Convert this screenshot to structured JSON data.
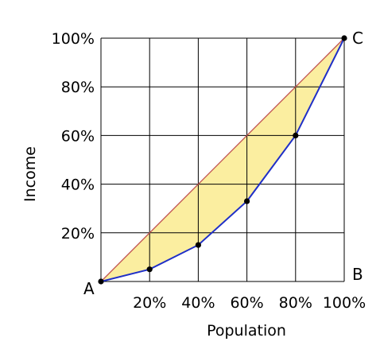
{
  "chart_data": {
    "type": "line",
    "title": "",
    "xlabel": "Population",
    "ylabel": "Income",
    "xlim": [
      0,
      100
    ],
    "ylim": [
      0,
      100
    ],
    "grid": true,
    "x_ticks": [
      20,
      40,
      60,
      80,
      100
    ],
    "x_tick_labels": [
      "20%",
      "40%",
      "60%",
      "80%",
      "100%"
    ],
    "y_ticks": [
      20,
      40,
      60,
      80,
      100
    ],
    "y_tick_labels": [
      "20%",
      "40%",
      "60%",
      "80%",
      "100%"
    ],
    "series": [
      {
        "x": [
          0,
          20,
          40,
          60,
          80,
          100
        ],
        "y": [
          0,
          5,
          15,
          33,
          60,
          100
        ]
      },
      {
        "x": [
          0,
          100
        ],
        "y": [
          0,
          100
        ]
      }
    ],
    "annotations": [
      {
        "text": "A",
        "x": 0,
        "y": 0
      },
      {
        "text": "B",
        "x": 100,
        "y": 0
      },
      {
        "text": "C",
        "x": 100,
        "y": 100
      }
    ],
    "colors": {
      "curve": "#1f2fc8",
      "diagonal": "#c0504d",
      "fill": "#fbeea0",
      "grid": "#000000",
      "points": "#000000"
    }
  }
}
